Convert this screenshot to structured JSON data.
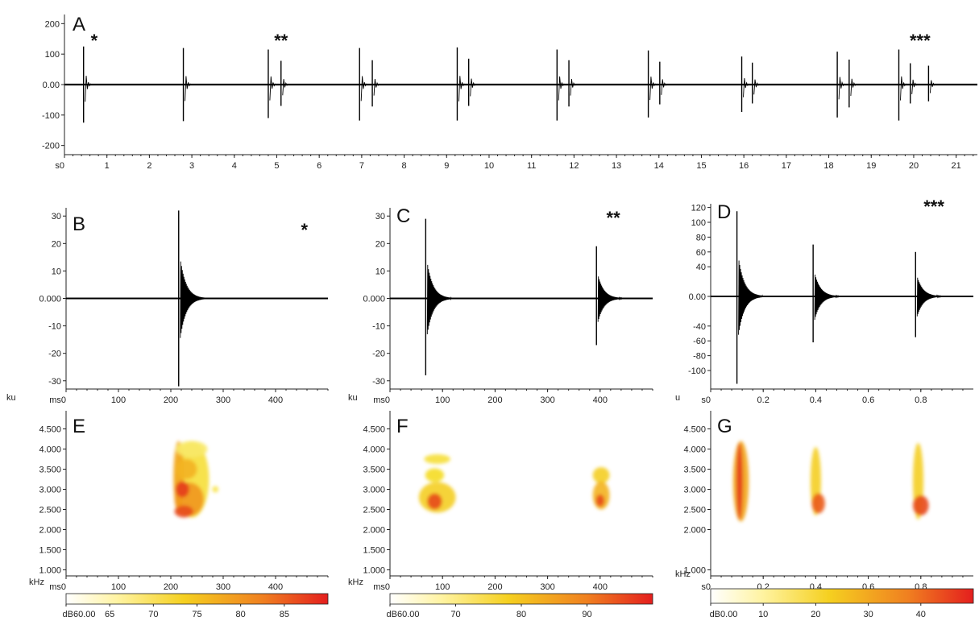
{
  "chart_data": [
    {
      "id": "A",
      "type": "line",
      "panel_label": "A",
      "xunit": "s",
      "xlim": [
        0,
        21.5
      ],
      "ylim": [
        -230,
        230
      ],
      "xticks": [
        0,
        1,
        2,
        3,
        4,
        5,
        6,
        7,
        8,
        9,
        10,
        11,
        12,
        13,
        14,
        15,
        16,
        17,
        18,
        19,
        20,
        21
      ],
      "xticklabels": [
        "0",
        "1",
        "2",
        "3",
        "4",
        "5",
        "6",
        "7",
        "8",
        "9",
        "10",
        "11",
        "12",
        "13",
        "14",
        "15",
        "16",
        "17",
        "18",
        "19",
        "20",
        "21"
      ],
      "yticks": [
        200,
        100,
        0,
        -100,
        -200
      ],
      "yticklabels": [
        "200",
        "100",
        "0.00",
        "-100",
        "-200"
      ],
      "pulses": [
        {
          "x": 0.45,
          "peak": 125,
          "trough": -125
        },
        {
          "x": 2.8,
          "peak": 120,
          "trough": -120
        },
        {
          "x": 4.8,
          "peak": 115,
          "trough": -110
        },
        {
          "x": 5.1,
          "peak": 78,
          "trough": -70
        },
        {
          "x": 6.95,
          "peak": 120,
          "trough": -118
        },
        {
          "x": 7.25,
          "peak": 80,
          "trough": -72
        },
        {
          "x": 9.25,
          "peak": 122,
          "trough": -118
        },
        {
          "x": 9.52,
          "peak": 85,
          "trough": -70
        },
        {
          "x": 11.6,
          "peak": 115,
          "trough": -118
        },
        {
          "x": 11.88,
          "peak": 80,
          "trough": -72
        },
        {
          "x": 13.75,
          "peak": 112,
          "trough": -108
        },
        {
          "x": 14.02,
          "peak": 75,
          "trough": -65
        },
        {
          "x": 15.95,
          "peak": 92,
          "trough": -90
        },
        {
          "x": 16.2,
          "peak": 72,
          "trough": -62
        },
        {
          "x": 18.2,
          "peak": 108,
          "trough": -108
        },
        {
          "x": 18.48,
          "peak": 82,
          "trough": -75
        },
        {
          "x": 19.65,
          "peak": 115,
          "trough": -118
        },
        {
          "x": 19.92,
          "peak": 70,
          "trough": -62
        },
        {
          "x": 20.35,
          "peak": 62,
          "trough": -55
        }
      ],
      "annotations": [
        {
          "text": "*",
          "x": 0.7
        },
        {
          "text": "**",
          "x": 5.1
        },
        {
          "text": "***",
          "x": 20.15
        }
      ]
    },
    {
      "id": "B",
      "type": "line",
      "panel_label": "B",
      "yunit": "ku",
      "xunit": "ms",
      "xlim": [
        0,
        500
      ],
      "ylim": [
        -33,
        33
      ],
      "xticks": [
        0,
        100,
        200,
        300,
        400
      ],
      "xticklabels": [
        "0",
        "100",
        "200",
        "300",
        "400"
      ],
      "yticks": [
        30,
        20,
        10,
        0,
        -10,
        -20,
        -30
      ],
      "yticklabels": [
        "30",
        "20",
        "10",
        "0.000",
        "-10",
        "-20",
        "-30"
      ],
      "pulses": [
        {
          "x": 215,
          "peak": 32,
          "trough": -32
        }
      ],
      "annotations": [
        {
          "text": "*",
          "x": 455
        }
      ]
    },
    {
      "id": "C",
      "type": "line",
      "panel_label": "C",
      "yunit": "ku",
      "xunit": "ms",
      "xlim": [
        0,
        500
      ],
      "ylim": [
        -33,
        33
      ],
      "xticks": [
        0,
        100,
        200,
        300,
        400
      ],
      "xticklabels": [
        "0",
        "100",
        "200",
        "300",
        "400"
      ],
      "yticks": [
        30,
        20,
        10,
        0,
        -10,
        -20,
        -30
      ],
      "yticklabels": [
        "30",
        "20",
        "10",
        "0.000",
        "-10",
        "-20",
        "-30"
      ],
      "pulses": [
        {
          "x": 68,
          "peak": 29,
          "trough": -28
        },
        {
          "x": 393,
          "peak": 19,
          "trough": -17
        }
      ],
      "annotations": [
        {
          "text": "**",
          "x": 425
        }
      ]
    },
    {
      "id": "D",
      "type": "line",
      "panel_label": "D",
      "yunit": "u",
      "xunit": "s",
      "xlim": [
        0,
        1.0
      ],
      "ylim": [
        -125,
        125
      ],
      "xticks": [
        0,
        0.2,
        0.4,
        0.6,
        0.8
      ],
      "xticklabels": [
        "0",
        "0.2",
        "0.4",
        "0.6",
        "0.8"
      ],
      "yticks": [
        120,
        100,
        80,
        60,
        40,
        0,
        -40,
        -60,
        -80,
        -100
      ],
      "yticklabels": [
        "120",
        "100",
        "80",
        "60",
        "40",
        "0.00",
        "-40",
        "-60",
        "-80",
        "-100"
      ],
      "pulses": [
        {
          "x": 0.1,
          "peak": 115,
          "trough": -118
        },
        {
          "x": 0.39,
          "peak": 70,
          "trough": -62
        },
        {
          "x": 0.78,
          "peak": 60,
          "trough": -55
        }
      ],
      "annotations": [
        {
          "text": "***",
          "x": 0.85
        }
      ]
    },
    {
      "id": "E",
      "type": "heatmap",
      "panel_label": "E",
      "yunit": "kHz",
      "xunit": "ms",
      "xlim": [
        0,
        500
      ],
      "ylim": [
        0.85,
        4.95
      ],
      "xticks": [
        0,
        100,
        200,
        300,
        400
      ],
      "xticklabels": [
        "0",
        "100",
        "200",
        "300",
        "400"
      ],
      "yticks": [
        4.5,
        4.0,
        3.5,
        3.0,
        2.5,
        2.0,
        1.5,
        1.0
      ],
      "yticklabels": [
        "4.500",
        "4.000",
        "3.500",
        "3.000",
        "2.500",
        "2.000",
        "1.500",
        "1.000"
      ],
      "colorbar": {
        "unit": "dB",
        "min": 60,
        "max": 90,
        "ticks": [
          60,
          65,
          70,
          75,
          80,
          85
        ],
        "ticklabels": [
          "60.00",
          "65",
          "70",
          "75",
          "80",
          "85"
        ]
      },
      "blobs": [
        {
          "x": 240,
          "y": 3.25,
          "rx": 33,
          "ry": 0.95,
          "level": 0.3
        },
        {
          "x": 215,
          "y": 3.3,
          "rx": 10,
          "ry": 0.9,
          "level": 0.55
        },
        {
          "x": 235,
          "y": 2.75,
          "rx": 28,
          "ry": 0.42,
          "level": 0.6
        },
        {
          "x": 230,
          "y": 3.5,
          "rx": 20,
          "ry": 0.25,
          "level": 0.5
        },
        {
          "x": 225,
          "y": 2.45,
          "rx": 18,
          "ry": 0.15,
          "level": 0.85
        },
        {
          "x": 222,
          "y": 3.0,
          "rx": 13,
          "ry": 0.2,
          "level": 0.9
        },
        {
          "x": 285,
          "y": 3.0,
          "rx": 6,
          "ry": 0.08,
          "level": 0.25
        },
        {
          "x": 240,
          "y": 4.0,
          "rx": 30,
          "ry": 0.2,
          "level": 0.2
        }
      ]
    },
    {
      "id": "F",
      "type": "heatmap",
      "panel_label": "F",
      "yunit": "kHz",
      "xunit": "ms",
      "xlim": [
        0,
        500
      ],
      "ylim": [
        0.85,
        4.95
      ],
      "xticks": [
        0,
        100,
        200,
        300,
        400
      ],
      "xticklabels": [
        "0",
        "100",
        "200",
        "300",
        "400"
      ],
      "yticks": [
        4.5,
        4.0,
        3.5,
        3.0,
        2.5,
        2.0,
        1.5,
        1.0
      ],
      "yticklabels": [
        "4.500",
        "4.000",
        "3.500",
        "3.000",
        "2.500",
        "2.000",
        "1.500",
        "1.000"
      ],
      "colorbar": {
        "unit": "dB",
        "min": 60,
        "max": 100,
        "ticks": [
          60,
          70,
          80,
          90
        ],
        "ticklabels": [
          "60.00",
          "70",
          "80",
          "90"
        ]
      },
      "blobs": [
        {
          "x": 90,
          "y": 3.75,
          "rx": 25,
          "ry": 0.12,
          "level": 0.3
        },
        {
          "x": 85,
          "y": 3.35,
          "rx": 18,
          "ry": 0.17,
          "level": 0.35
        },
        {
          "x": 90,
          "y": 2.8,
          "rx": 35,
          "ry": 0.38,
          "level": 0.4
        },
        {
          "x": 85,
          "y": 2.7,
          "rx": 14,
          "ry": 0.2,
          "level": 0.85
        },
        {
          "x": 402,
          "y": 3.35,
          "rx": 16,
          "ry": 0.2,
          "level": 0.4
        },
        {
          "x": 402,
          "y": 2.85,
          "rx": 16,
          "ry": 0.35,
          "level": 0.5
        },
        {
          "x": 400,
          "y": 2.72,
          "rx": 8,
          "ry": 0.15,
          "level": 0.85
        }
      ]
    },
    {
      "id": "G",
      "type": "heatmap",
      "panel_label": "G",
      "yunit": "kHz",
      "xunit": "s",
      "xlim": [
        0,
        1.0
      ],
      "ylim": [
        0.85,
        4.95
      ],
      "xticks": [
        0,
        0.2,
        0.4,
        0.6,
        0.8
      ],
      "xticklabels": [
        "0",
        "0.2",
        "0.4",
        "0.6",
        "0.8"
      ],
      "yticks": [
        4.5,
        4.0,
        3.5,
        3.0,
        2.5,
        2.0,
        1.0
      ],
      "yticklabels": [
        "4.500",
        "4.000",
        "3.500",
        "3.000",
        "2.500",
        "2.000",
        "1.000"
      ],
      "colorbar": {
        "unit": "dB",
        "min": 0,
        "max": 50,
        "ticks": [
          0,
          10,
          20,
          30,
          40
        ],
        "ticklabels": [
          "0.00",
          "10",
          "20",
          "30",
          "40"
        ]
      },
      "blobs": [
        {
          "x": 0.115,
          "y": 3.2,
          "rx": 0.03,
          "ry": 1.0,
          "level": 0.55
        },
        {
          "x": 0.11,
          "y": 3.2,
          "rx": 0.012,
          "ry": 0.95,
          "level": 0.9
        },
        {
          "x": 0.4,
          "y": 3.2,
          "rx": 0.02,
          "ry": 0.85,
          "level": 0.4
        },
        {
          "x": 0.41,
          "y": 2.65,
          "rx": 0.025,
          "ry": 0.25,
          "level": 0.8
        },
        {
          "x": 0.79,
          "y": 3.2,
          "rx": 0.02,
          "ry": 0.95,
          "level": 0.4
        },
        {
          "x": 0.8,
          "y": 2.6,
          "rx": 0.03,
          "ry": 0.25,
          "level": 0.85
        }
      ]
    }
  ]
}
